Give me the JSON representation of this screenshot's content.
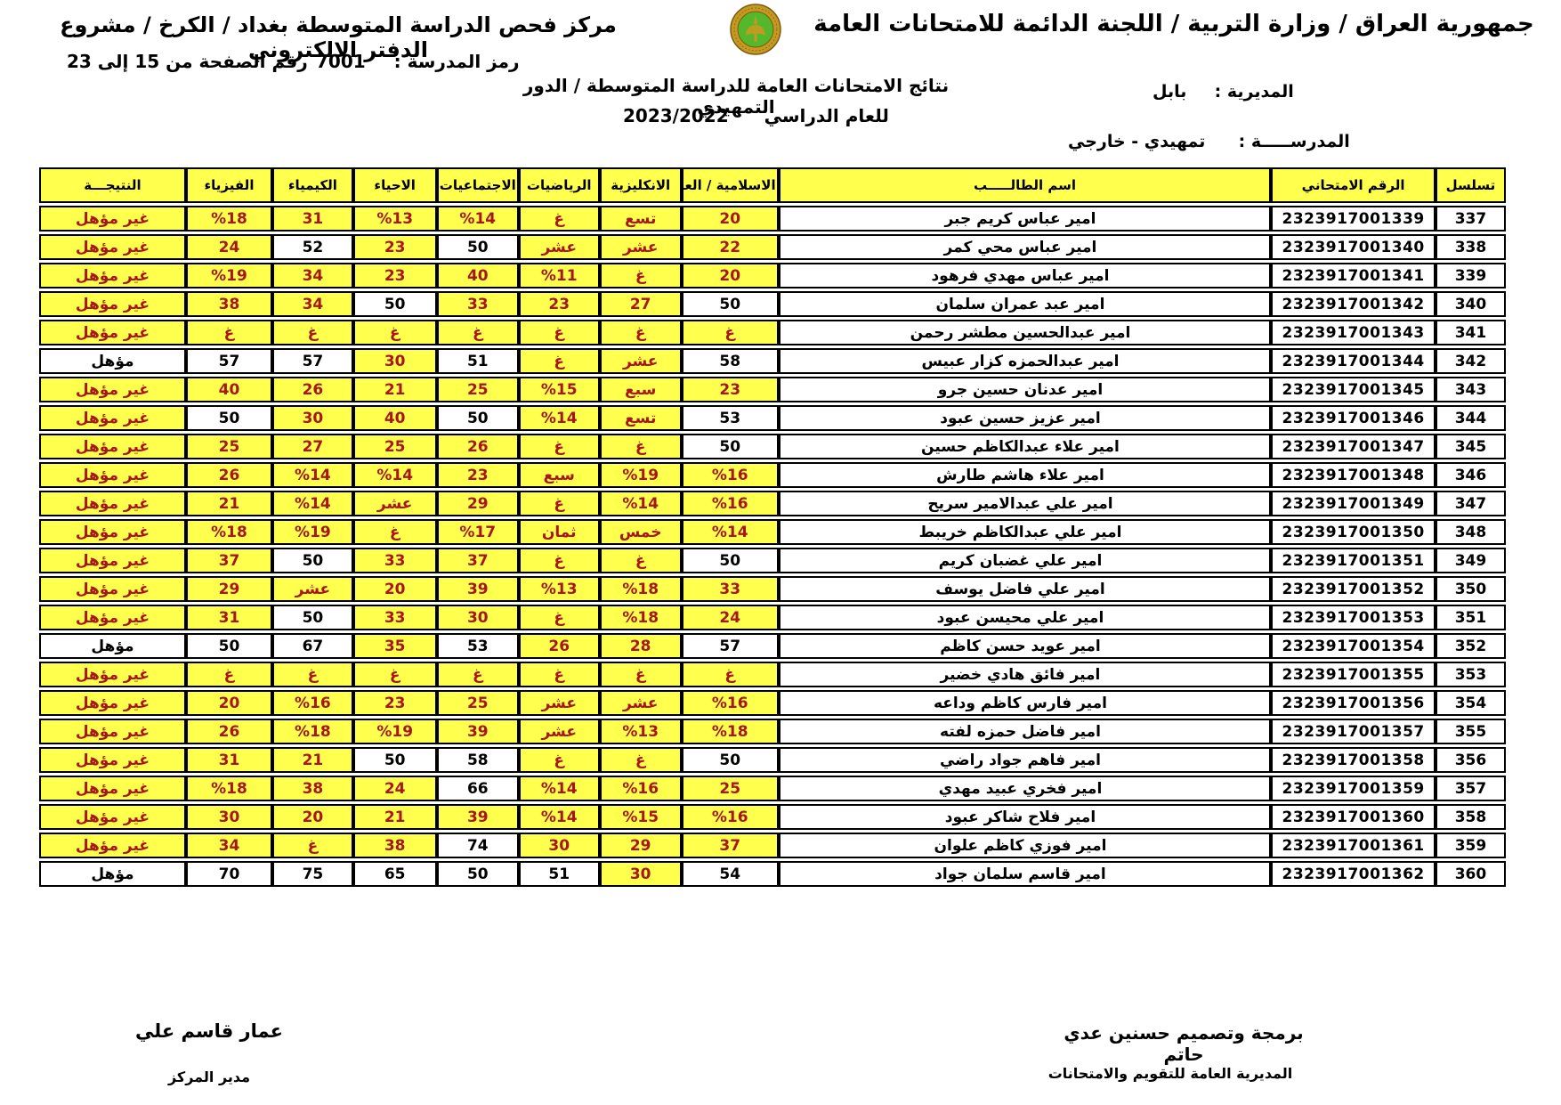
{
  "header": {
    "gov_line": "جمهورية العراق / وزارة التربية / اللجنة الدائمة للامتحانات العامة",
    "center_line": "مركز فحص الدراسة المتوسطة بغداد / الكرخ / مشروع الدفتر الالكتروني",
    "school_code_label": "رمز المدرسة :",
    "school_code": "7001",
    "page_range": "رقم الصفحة من 15 إلى 23",
    "report_title": "نتائج الامتحانات العامة للدراسة المتوسطة / الدور التمهيدي",
    "year_label": "للعام الدراسي",
    "year_value": "2023/2022",
    "directorate_label": "المديرية :",
    "directorate_value": "بابل",
    "school_label": "المدرســـــة :",
    "school_value": "تمهيدي - خارجي",
    "logo_name": "ministry-of-education-emblem",
    "logo_colors": {
      "ring": "#C79A1F",
      "ring_edge": "#7A5C10",
      "center": "#55B82C"
    }
  },
  "table": {
    "accent_yellow": "#FFFF4D",
    "fail_red": "#A81717",
    "result_pass_value": "مؤهل",
    "columns": [
      {
        "key": "serial",
        "label": "تسلسل"
      },
      {
        "key": "exam_no",
        "label": "الرقم الامتحاني"
      },
      {
        "key": "name",
        "label": "اسم الطالـــــب"
      },
      {
        "key": "arabic",
        "label": "الاسلامية / العربية"
      },
      {
        "key": "english",
        "label": "الانكليزية"
      },
      {
        "key": "math",
        "label": "الرياضيات"
      },
      {
        "key": "social",
        "label": "الاجتماعيات"
      },
      {
        "key": "biology",
        "label": "الاحياء"
      },
      {
        "key": "chemistry",
        "label": "الكيمياء"
      },
      {
        "key": "physics",
        "label": "الفيزياء"
      },
      {
        "key": "result",
        "label": "النتيجـــة"
      }
    ],
    "rows": [
      {
        "serial": "337",
        "exam_no": "2323917001339",
        "name": "امير عباس كريم جبر",
        "arabic": "20",
        "english": "تسع",
        "math": "غ",
        "social": "%14",
        "biology": "%13",
        "chemistry": "31",
        "physics": "%18",
        "result": "غير مؤهل"
      },
      {
        "serial": "338",
        "exam_no": "2323917001340",
        "name": "امير عباس محي كمر",
        "arabic": "22",
        "english": "عشر",
        "math": "عشر",
        "social": "50",
        "biology": "23",
        "chemistry": "52",
        "physics": "24",
        "result": "غير مؤهل"
      },
      {
        "serial": "339",
        "exam_no": "2323917001341",
        "name": "امير عباس مهدي فرهود",
        "arabic": "20",
        "english": "غ",
        "math": "%11",
        "social": "40",
        "biology": "23",
        "chemistry": "34",
        "physics": "%19",
        "result": "غير مؤهل"
      },
      {
        "serial": "340",
        "exam_no": "2323917001342",
        "name": "امير عبد عمران سلمان",
        "arabic": "50",
        "english": "27",
        "math": "23",
        "social": "33",
        "biology": "50",
        "chemistry": "34",
        "physics": "38",
        "result": "غير مؤهل"
      },
      {
        "serial": "341",
        "exam_no": "2323917001343",
        "name": "امير عبدالحسين مطشر رحمن",
        "arabic": "غ",
        "english": "غ",
        "math": "غ",
        "social": "غ",
        "biology": "غ",
        "chemistry": "غ",
        "physics": "غ",
        "result": "غير مؤهل"
      },
      {
        "serial": "342",
        "exam_no": "2323917001344",
        "name": "امير عبدالحمزه كزار عبيس",
        "arabic": "58",
        "english": "عشر",
        "math": "غ",
        "social": "51",
        "biology": "30",
        "chemistry": "57",
        "physics": "57",
        "result": "مؤهل"
      },
      {
        "serial": "343",
        "exam_no": "2323917001345",
        "name": "امير عدنان حسين جرو",
        "arabic": "23",
        "english": "سبع",
        "math": "%15",
        "social": "25",
        "biology": "21",
        "chemistry": "26",
        "physics": "40",
        "result": "غير مؤهل"
      },
      {
        "serial": "344",
        "exam_no": "2323917001346",
        "name": "امير عزيز حسين عبود",
        "arabic": "53",
        "english": "تسع",
        "math": "%14",
        "social": "50",
        "biology": "40",
        "chemistry": "30",
        "physics": "50",
        "result": "غير مؤهل"
      },
      {
        "serial": "345",
        "exam_no": "2323917001347",
        "name": "امير علاء عبدالكاظم حسين",
        "arabic": "50",
        "english": "غ",
        "math": "غ",
        "social": "26",
        "biology": "25",
        "chemistry": "27",
        "physics": "25",
        "result": "غير مؤهل"
      },
      {
        "serial": "346",
        "exam_no": "2323917001348",
        "name": "امير علاء هاشم طارش",
        "arabic": "%16",
        "english": "%19",
        "math": "سبع",
        "social": "23",
        "biology": "%14",
        "chemistry": "%14",
        "physics": "26",
        "result": "غير مؤهل"
      },
      {
        "serial": "347",
        "exam_no": "2323917001349",
        "name": "امير علي عبدالامير سريح",
        "arabic": "%16",
        "english": "%14",
        "math": "غ",
        "social": "29",
        "biology": "عشر",
        "chemistry": "%14",
        "physics": "21",
        "result": "غير مؤهل"
      },
      {
        "serial": "348",
        "exam_no": "2323917001350",
        "name": "امير علي عبدالكاظم خريبط",
        "arabic": "%14",
        "english": "خمس",
        "math": "ثمان",
        "social": "%17",
        "biology": "غ",
        "chemistry": "%19",
        "physics": "%18",
        "result": "غير مؤهل"
      },
      {
        "serial": "349",
        "exam_no": "2323917001351",
        "name": "امير علي غضبان كريم",
        "arabic": "50",
        "english": "غ",
        "math": "غ",
        "social": "37",
        "biology": "33",
        "chemistry": "50",
        "physics": "37",
        "result": "غير مؤهل"
      },
      {
        "serial": "350",
        "exam_no": "2323917001352",
        "name": "امير علي فاضل يوسف",
        "arabic": "33",
        "english": "%18",
        "math": "%13",
        "social": "39",
        "biology": "20",
        "chemistry": "عشر",
        "physics": "29",
        "result": "غير مؤهل"
      },
      {
        "serial": "351",
        "exam_no": "2323917001353",
        "name": "امير علي محيسن عبود",
        "arabic": "24",
        "english": "%18",
        "math": "غ",
        "social": "30",
        "biology": "33",
        "chemistry": "50",
        "physics": "31",
        "result": "غير مؤهل"
      },
      {
        "serial": "352",
        "exam_no": "2323917001354",
        "name": "امير عويد حسن كاظم",
        "arabic": "57",
        "english": "28",
        "math": "26",
        "social": "53",
        "biology": "35",
        "chemistry": "67",
        "physics": "50",
        "result": "مؤهل"
      },
      {
        "serial": "353",
        "exam_no": "2323917001355",
        "name": "امير فائق هادي خضير",
        "arabic": "غ",
        "english": "غ",
        "math": "غ",
        "social": "غ",
        "biology": "غ",
        "chemistry": "غ",
        "physics": "غ",
        "result": "غير مؤهل"
      },
      {
        "serial": "354",
        "exam_no": "2323917001356",
        "name": "امير فارس كاظم وداعه",
        "arabic": "%16",
        "english": "عشر",
        "math": "عشر",
        "social": "25",
        "biology": "23",
        "chemistry": "%16",
        "physics": "20",
        "result": "غير مؤهل"
      },
      {
        "serial": "355",
        "exam_no": "2323917001357",
        "name": "امير فاضل حمزه لفته",
        "arabic": "%18",
        "english": "%13",
        "math": "عشر",
        "social": "39",
        "biology": "%19",
        "chemistry": "%18",
        "physics": "26",
        "result": "غير مؤهل"
      },
      {
        "serial": "356",
        "exam_no": "2323917001358",
        "name": "امير فاهم جواد راضي",
        "arabic": "50",
        "english": "غ",
        "math": "غ",
        "social": "58",
        "biology": "50",
        "chemistry": "21",
        "physics": "31",
        "result": "غير مؤهل"
      },
      {
        "serial": "357",
        "exam_no": "2323917001359",
        "name": "امير فخري عبيد مهدي",
        "arabic": "25",
        "english": "%16",
        "math": "%14",
        "social": "66",
        "biology": "24",
        "chemistry": "38",
        "physics": "%18",
        "result": "غير مؤهل"
      },
      {
        "serial": "358",
        "exam_no": "2323917001360",
        "name": "امير فلاح شاكر عبود",
        "arabic": "%16",
        "english": "%15",
        "math": "%14",
        "social": "39",
        "biology": "21",
        "chemistry": "20",
        "physics": "30",
        "result": "غير مؤهل"
      },
      {
        "serial": "359",
        "exam_no": "2323917001361",
        "name": "امير فوزي كاظم علوان",
        "arabic": "37",
        "english": "29",
        "math": "30",
        "social": "74",
        "biology": "38",
        "chemistry": "غ",
        "physics": "34",
        "result": "غير مؤهل"
      },
      {
        "serial": "360",
        "exam_no": "2323917001362",
        "name": "امير قاسم سلمان جواد",
        "arabic": "54",
        "english": "30",
        "math": "51",
        "social": "50",
        "biology": "65",
        "chemistry": "75",
        "physics": "70",
        "result": "مؤهل"
      }
    ]
  },
  "footer": {
    "credit_line": "برمجة وتصميم حسنين عدي حاتم",
    "directorate_line": "المديرية العامة للتقويم والامتحانات",
    "manager_name": "عمار قاسم علي",
    "manager_title": "مدير المركز"
  }
}
